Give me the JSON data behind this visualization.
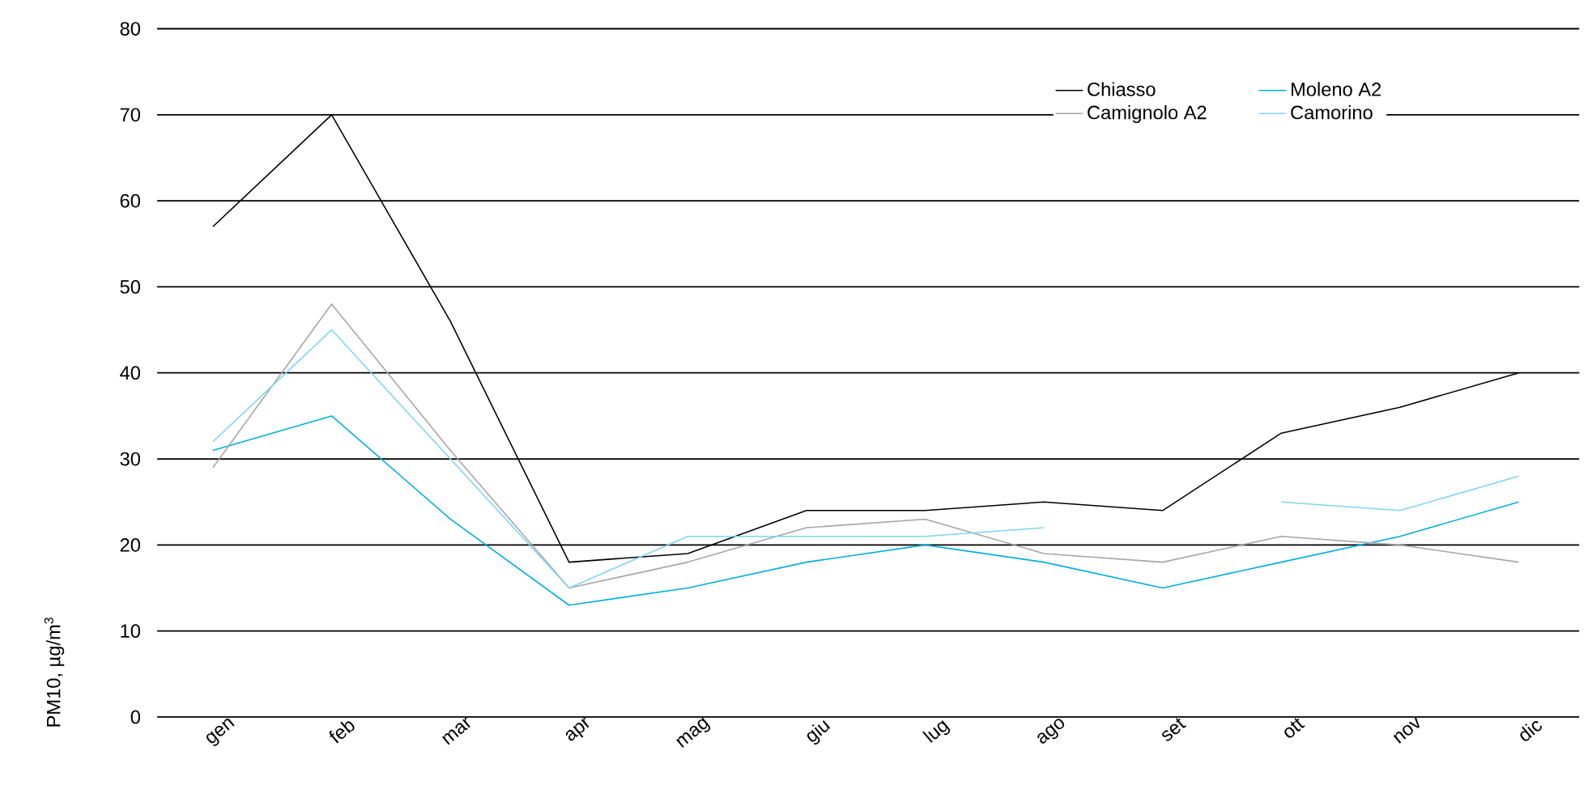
{
  "chart_data": {
    "type": "line",
    "ylabel": "PM10, µg/m$^{3}$",
    "categories": [
      "gen",
      "feb",
      "mar",
      "apr",
      "mag",
      "giu",
      "lug",
      "ago",
      "set",
      "ott",
      "nov",
      "dic"
    ],
    "series": [
      {
        "name": "Chiasso",
        "color": "#000000",
        "values": [
          57,
          70,
          46,
          18,
          19,
          24,
          24,
          25,
          24,
          33,
          36,
          40
        ]
      },
      {
        "name": "Moleno A2",
        "color": "#00b0e0",
        "values": [
          31,
          35,
          23,
          13,
          15,
          18,
          20,
          18,
          15,
          18,
          21,
          25
        ]
      },
      {
        "name": "Camignolo A2",
        "color": "#a6a6a6",
        "values": [
          29,
          48,
          31,
          15,
          18,
          22,
          23,
          19,
          18,
          21,
          20,
          18
        ]
      },
      {
        "name": "Camorino",
        "color": "#80d4f4",
        "values": [
          32,
          45,
          30,
          15,
          21,
          21,
          21,
          22,
          null,
          25,
          24,
          28
        ]
      }
    ],
    "ylim": [
      0,
      80
    ],
    "yticks": [
      0,
      10,
      20,
      30,
      40,
      50,
      60,
      70,
      80
    ],
    "grid": "y",
    "legend": "top right",
    "marker": "none",
    "line_style": "solid"
  }
}
